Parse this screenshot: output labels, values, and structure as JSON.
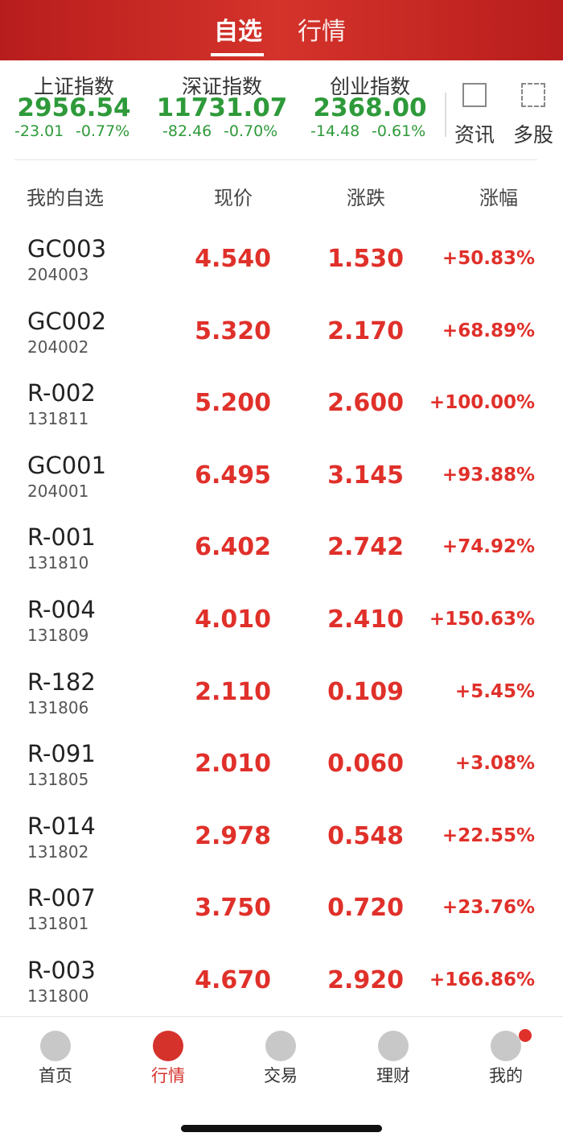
{
  "header": {
    "tabs": [
      "自选",
      "行情"
    ]
  },
  "indices": [
    {
      "name": "上证指数",
      "value": "2956.54",
      "change": "-23.01",
      "pct": "-0.77%"
    },
    {
      "name": "深证指数",
      "value": "11731.07",
      "change": "-82.46",
      "pct": "-0.70%"
    },
    {
      "name": "创业指数",
      "value": "2368.00",
      "change": "-14.48",
      "pct": "-0.61%"
    }
  ],
  "tools": [
    "资讯",
    "多股"
  ],
  "table": {
    "columns": [
      "我的自选",
      "现价",
      "涨跌",
      "涨幅"
    ],
    "rows": [
      [
        "GC003",
        "204003",
        "4.540",
        "1.530",
        "+50.83%"
      ],
      [
        "GC002",
        "204002",
        "5.320",
        "2.170",
        "+68.89%"
      ],
      [
        "R-002",
        "131811",
        "5.200",
        "2.600",
        "+100.00%"
      ],
      [
        "GC001",
        "204001",
        "6.495",
        "3.145",
        "+93.88%"
      ],
      [
        "R-001",
        "131810",
        "6.402",
        "2.742",
        "+74.92%"
      ],
      [
        "R-004",
        "131809",
        "4.010",
        "2.410",
        "+150.63%"
      ],
      [
        "R-182",
        "131806",
        "2.110",
        "0.109",
        "+5.45%"
      ],
      [
        "R-091",
        "131805",
        "2.010",
        "0.060",
        "+3.08%"
      ],
      [
        "R-014",
        "131802",
        "2.978",
        "0.548",
        "+22.55%"
      ],
      [
        "R-007",
        "131801",
        "3.750",
        "0.720",
        "+23.76%"
      ],
      [
        "R-003",
        "131800",
        "4.670",
        "2.920",
        "+166.86%"
      ]
    ]
  },
  "nav": [
    "首页",
    "行情",
    "交易",
    "理财",
    "我的"
  ]
}
